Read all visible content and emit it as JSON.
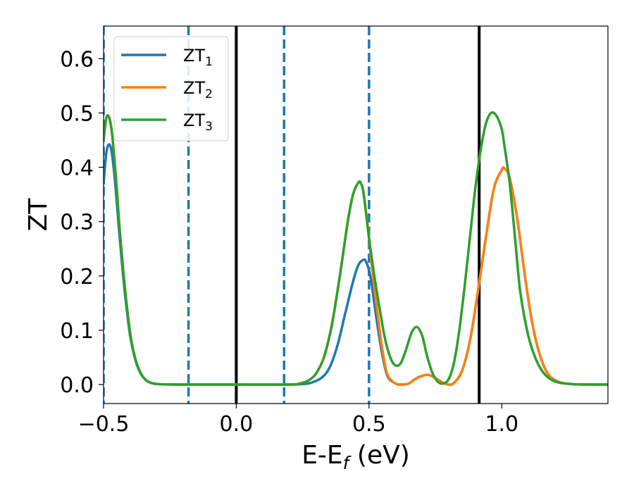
{
  "chart_data": {
    "type": "line",
    "xlabel": "E-E",
    "xlabel_subscript": "f",
    "xlabel_unit": " (eV)",
    "ylabel": "ZT",
    "xlim": [
      -0.5,
      1.4
    ],
    "ylim": [
      -0.035,
      0.66
    ],
    "xticks": [
      -0.5,
      0.0,
      0.5,
      1.0
    ],
    "xtick_labels": [
      "−0.5",
      "0.0",
      "0.5",
      "1.0"
    ],
    "yticks": [
      0.0,
      0.1,
      0.2,
      0.3,
      0.4,
      0.5,
      0.6
    ],
    "ytick_labels": [
      "0.0",
      "0.1",
      "0.2",
      "0.3",
      "0.4",
      "0.5",
      "0.6"
    ],
    "grid": false,
    "legend_position": "top-left",
    "vertical_lines": [
      {
        "x": -0.5,
        "style": "dashed",
        "color": "#1f77b4"
      },
      {
        "x": -0.18,
        "style": "dashed",
        "color": "#1f77b4"
      },
      {
        "x": 0.18,
        "style": "dashed",
        "color": "#1f77b4"
      },
      {
        "x": 0.5,
        "style": "dashed",
        "color": "#1f77b4"
      },
      {
        "x": 0.0,
        "style": "solid",
        "color": "#000000"
      },
      {
        "x": 0.915,
        "style": "solid",
        "color": "#000000"
      }
    ],
    "series": [
      {
        "name": "ZT",
        "name_subscript": "1",
        "color": "#1f77b4",
        "x": [
          -0.5,
          -0.49,
          -0.48,
          -0.47,
          -0.46,
          -0.45,
          -0.44,
          -0.42,
          -0.4,
          -0.38,
          -0.36,
          -0.34,
          -0.32,
          -0.3,
          -0.27,
          -0.24,
          -0.2,
          0.0,
          0.2,
          0.25,
          0.28,
          0.32,
          0.35,
          0.38,
          0.41,
          0.44,
          0.46,
          0.48,
          0.49,
          0.5,
          0.51,
          0.53,
          0.55,
          0.57,
          0.6,
          0.62,
          0.65,
          0.68,
          0.72,
          0.75,
          0.78,
          0.8,
          0.82,
          0.85,
          0.88,
          0.91,
          0.94,
          0.97,
          1.0,
          1.01,
          1.03,
          1.06,
          1.09,
          1.12,
          1.15,
          1.18,
          1.22,
          1.26,
          1.3,
          1.35,
          1.4
        ],
        "y": [
          0.37,
          0.425,
          0.442,
          0.43,
          0.39,
          0.335,
          0.275,
          0.17,
          0.09,
          0.045,
          0.02,
          0.008,
          0.003,
          0.001,
          0.0003,
          0.0001,
          0.0,
          0.0,
          0.0,
          0.001,
          0.003,
          0.012,
          0.03,
          0.07,
          0.13,
          0.19,
          0.22,
          0.23,
          0.225,
          0.21,
          0.185,
          0.115,
          0.055,
          0.015,
          0.002,
          0.0,
          0.002,
          0.012,
          0.018,
          0.012,
          0.003,
          0.0,
          0.003,
          0.025,
          0.08,
          0.17,
          0.27,
          0.36,
          0.395,
          0.398,
          0.38,
          0.3,
          0.19,
          0.1,
          0.045,
          0.016,
          0.004,
          0.001,
          0.0002,
          0.0,
          0.0
        ]
      },
      {
        "name": "ZT",
        "name_subscript": "2",
        "color": "#ff7f0e",
        "x": [
          -0.5,
          -0.49,
          -0.48,
          -0.47,
          -0.46,
          -0.45,
          -0.44,
          -0.42,
          -0.4,
          -0.38,
          -0.36,
          -0.34,
          -0.32,
          -0.3,
          -0.27,
          -0.24,
          -0.2,
          0.0,
          0.2,
          0.24,
          0.27,
          0.3,
          0.33,
          0.36,
          0.39,
          0.42,
          0.44,
          0.46,
          0.47,
          0.48,
          0.5,
          0.51,
          0.53,
          0.55,
          0.57,
          0.6,
          0.62,
          0.65,
          0.68,
          0.72,
          0.75,
          0.78,
          0.8,
          0.82,
          0.85,
          0.88,
          0.91,
          0.94,
          0.97,
          1.0,
          1.01,
          1.03,
          1.06,
          1.09,
          1.12,
          1.15,
          1.18,
          1.22,
          1.26,
          1.3,
          1.35,
          1.4
        ],
        "y": [
          0.45,
          0.49,
          0.493,
          0.47,
          0.42,
          0.36,
          0.29,
          0.18,
          0.095,
          0.047,
          0.021,
          0.008,
          0.003,
          0.001,
          0.0003,
          0.0001,
          0.0,
          0.0,
          0.0,
          0.002,
          0.007,
          0.02,
          0.05,
          0.11,
          0.2,
          0.3,
          0.35,
          0.372,
          0.37,
          0.35,
          0.27,
          0.22,
          0.14,
          0.065,
          0.018,
          0.002,
          0.0,
          0.002,
          0.012,
          0.018,
          0.012,
          0.003,
          0.0,
          0.003,
          0.025,
          0.08,
          0.17,
          0.27,
          0.36,
          0.395,
          0.398,
          0.38,
          0.3,
          0.19,
          0.1,
          0.045,
          0.016,
          0.004,
          0.001,
          0.0002,
          0.0,
          0.0
        ]
      },
      {
        "name": "ZT",
        "name_subscript": "3",
        "color": "#2ca02c",
        "x": [
          -0.5,
          -0.49,
          -0.48,
          -0.47,
          -0.46,
          -0.45,
          -0.44,
          -0.42,
          -0.4,
          -0.38,
          -0.36,
          -0.34,
          -0.32,
          -0.3,
          -0.27,
          -0.24,
          -0.2,
          0.0,
          0.2,
          0.24,
          0.27,
          0.3,
          0.33,
          0.36,
          0.39,
          0.42,
          0.44,
          0.46,
          0.47,
          0.48,
          0.5,
          0.52,
          0.54,
          0.56,
          0.58,
          0.6,
          0.62,
          0.64,
          0.66,
          0.68,
          0.7,
          0.72,
          0.74,
          0.76,
          0.78,
          0.8,
          0.82,
          0.84,
          0.86,
          0.88,
          0.9,
          0.92,
          0.94,
          0.96,
          0.98,
          1.0,
          1.01,
          1.03,
          1.05,
          1.07,
          1.1,
          1.13,
          1.16,
          1.19,
          1.22,
          1.26,
          1.3,
          1.35,
          1.4
        ],
        "y": [
          0.45,
          0.49,
          0.493,
          0.47,
          0.42,
          0.36,
          0.29,
          0.18,
          0.095,
          0.047,
          0.021,
          0.008,
          0.003,
          0.001,
          0.0003,
          0.0001,
          0.0,
          0.0,
          0.0,
          0.002,
          0.007,
          0.02,
          0.05,
          0.11,
          0.2,
          0.3,
          0.35,
          0.372,
          0.37,
          0.35,
          0.27,
          0.2,
          0.14,
          0.085,
          0.05,
          0.035,
          0.04,
          0.065,
          0.095,
          0.106,
          0.09,
          0.05,
          0.02,
          0.005,
          0.002,
          0.01,
          0.04,
          0.1,
          0.18,
          0.27,
          0.36,
          0.43,
          0.48,
          0.5,
          0.495,
          0.47,
          0.44,
          0.37,
          0.27,
          0.17,
          0.09,
          0.045,
          0.02,
          0.008,
          0.003,
          0.001,
          0.0002,
          0.0,
          0.0
        ]
      }
    ]
  }
}
